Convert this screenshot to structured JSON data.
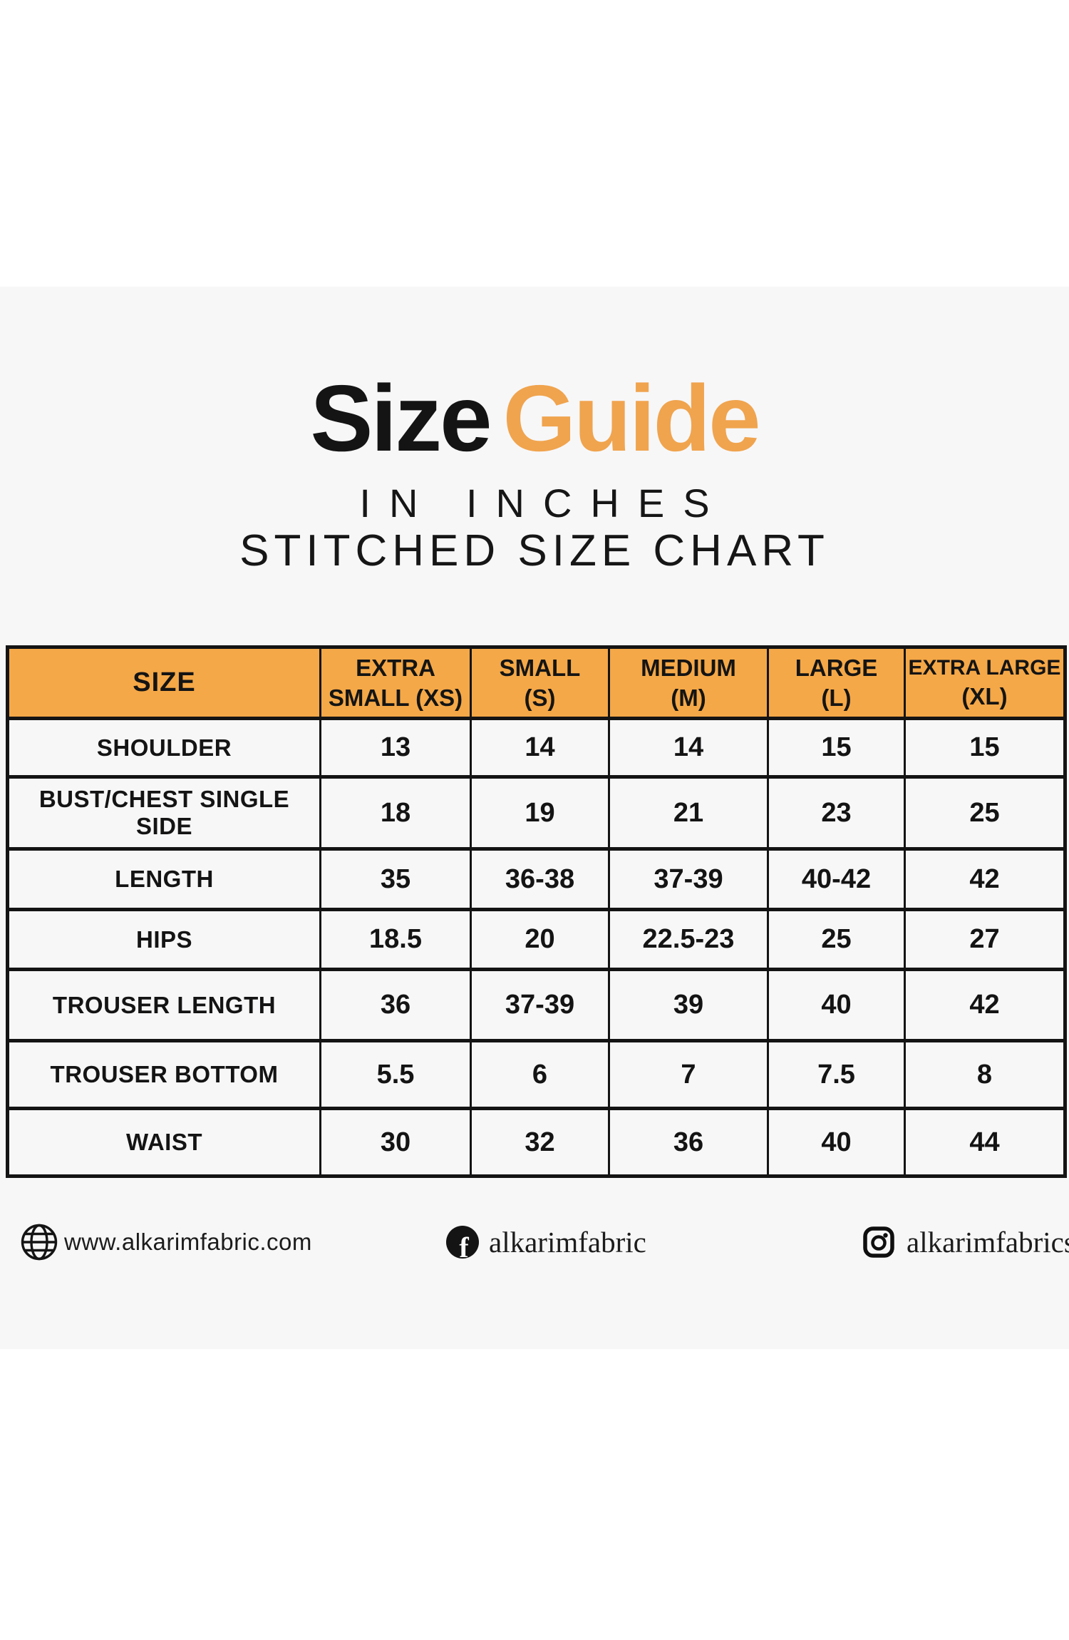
{
  "colors": {
    "title_orange": "#F0A44E",
    "header_orange": "#F5A847",
    "text_black": "#141414",
    "band_background": "#F7F7F8",
    "page_background": "#FFFFFF"
  },
  "header": {
    "title_black": "Size",
    "title_orange": "Guide",
    "subtitle_inches": "IN INCHES",
    "subtitle_chart": "STITCHED SIZE CHART"
  },
  "table": {
    "columns": [
      {
        "key": "size",
        "lines": [
          "SIZE"
        ]
      },
      {
        "key": "xs",
        "lines": [
          "EXTRA",
          "SMALL (XS)"
        ]
      },
      {
        "key": "s",
        "lines": [
          "SMALL",
          "(S)"
        ]
      },
      {
        "key": "m",
        "lines": [
          "MEDIUM",
          "(M)"
        ]
      },
      {
        "key": "l",
        "lines": [
          "LARGE",
          "(L)"
        ]
      },
      {
        "key": "xl",
        "lines": [
          "EXTRA LARGE",
          "(XL)"
        ]
      }
    ],
    "rows": [
      {
        "key": "shoulder",
        "label": "SHOULDER",
        "values": [
          "13",
          "14",
          "14",
          "15",
          "15"
        ]
      },
      {
        "key": "bust-chest",
        "label": "BUST/CHEST SINGLE SIDE",
        "values": [
          "18",
          "19",
          "21",
          "23",
          "25"
        ]
      },
      {
        "key": "length",
        "label": "LENGTH",
        "values": [
          "35",
          "36-38",
          "37-39",
          "40-42",
          "42"
        ]
      },
      {
        "key": "hips",
        "label": "HIPS",
        "values": [
          "18.5",
          "20",
          "22.5-23",
          "25",
          "27"
        ]
      },
      {
        "key": "trouser-length",
        "label": "TROUSER LENGTH",
        "values": [
          "36",
          "37-39",
          "39",
          "40",
          "42"
        ]
      },
      {
        "key": "trouser-bottom",
        "label": "TROUSER BOTTOM",
        "values": [
          "5.5",
          "6",
          "7",
          "7.5",
          "8"
        ]
      },
      {
        "key": "waist",
        "label": "WAIST",
        "values": [
          "30",
          "32",
          "36",
          "40",
          "44"
        ]
      }
    ]
  },
  "footer": {
    "website": "www.alkarimfabric.com",
    "facebook_handle": "alkarimfabric",
    "instagram_handle": "alkarimfabrics",
    "facebook_icon_letter": "f"
  },
  "chart_data": {
    "type": "table",
    "title": "Size Guide",
    "subtitle": [
      "IN INCHES",
      "STITCHED SIZE CHART"
    ],
    "unit": "inches",
    "columns": [
      "SIZE",
      "EXTRA SMALL (XS)",
      "SMALL (S)",
      "MEDIUM (M)",
      "LARGE (L)",
      "EXTRA LARGE (XL)"
    ],
    "rows": [
      [
        "SHOULDER",
        "13",
        "14",
        "14",
        "15",
        "15"
      ],
      [
        "BUST/CHEST SINGLE SIDE",
        "18",
        "19",
        "21",
        "23",
        "25"
      ],
      [
        "LENGTH",
        "35",
        "36-38",
        "37-39",
        "40-42",
        "42"
      ],
      [
        "HIPS",
        "18.5",
        "20",
        "22.5-23",
        "25",
        "27"
      ],
      [
        "TROUSER LENGTH",
        "36",
        "37-39",
        "39",
        "40",
        "42"
      ],
      [
        "TROUSER BOTTOM",
        "5.5",
        "6",
        "7",
        "7.5",
        "8"
      ],
      [
        "WAIST",
        "30",
        "32",
        "36",
        "40",
        "44"
      ]
    ]
  }
}
